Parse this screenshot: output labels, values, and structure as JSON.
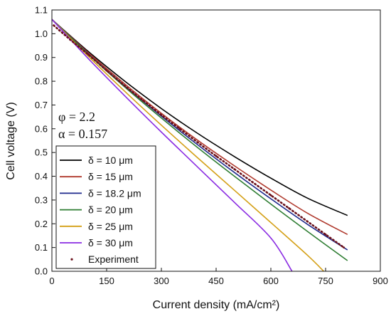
{
  "chart_data": {
    "type": "line",
    "xlabel": "Current density (mA/cm²)",
    "ylabel": "Cell voltage (V)",
    "xlim": [
      0,
      900
    ],
    "ylim": [
      0,
      1.1
    ],
    "x_ticks": [
      "0",
      "150",
      "300",
      "450",
      "600",
      "750",
      "900"
    ],
    "y_ticks": [
      "0.0",
      "0.1",
      "0.2",
      "0.3",
      "0.4",
      "0.5",
      "0.6",
      "0.7",
      "0.8",
      "0.9",
      "1.0",
      "1.1"
    ],
    "annotations": [
      "φ = 2.2",
      "α = 0.157"
    ],
    "legend_position": "left",
    "series": [
      {
        "name": "δ = 10 μm",
        "color": "#000000",
        "style": "line",
        "x": [
          0,
          100,
          200,
          300,
          400,
          500,
          600,
          700,
          810
        ],
        "y": [
          1.06,
          0.925,
          0.8,
          0.685,
          0.58,
          0.483,
          0.392,
          0.308,
          0.235
        ]
      },
      {
        "name": "δ = 15 μm",
        "color": "#b03a2e",
        "style": "line",
        "x": [
          0,
          100,
          200,
          300,
          400,
          500,
          600,
          700,
          810
        ],
        "y": [
          1.06,
          0.92,
          0.788,
          0.665,
          0.551,
          0.444,
          0.342,
          0.245,
          0.155
        ]
      },
      {
        "name": "δ = 18.2 μm",
        "color": "#1f2a8c",
        "style": "line",
        "x": [
          0,
          100,
          200,
          300,
          400,
          500,
          600,
          700,
          810
        ],
        "y": [
          1.06,
          0.915,
          0.78,
          0.653,
          0.532,
          0.416,
          0.305,
          0.198,
          0.09
        ]
      },
      {
        "name": "δ = 20 μm",
        "color": "#2e7d32",
        "style": "line",
        "x": [
          0,
          100,
          200,
          300,
          400,
          500,
          600,
          700,
          810
        ],
        "y": [
          1.06,
          0.913,
          0.775,
          0.645,
          0.52,
          0.4,
          0.283,
          0.168,
          0.045
        ]
      },
      {
        "name": "δ = 25 μm",
        "color": "#d4a017",
        "style": "line",
        "x": [
          0,
          100,
          200,
          300,
          400,
          500,
          600,
          700,
          745
        ],
        "y": [
          1.06,
          0.905,
          0.757,
          0.615,
          0.477,
          0.341,
          0.205,
          0.068,
          0.0
        ]
      },
      {
        "name": "δ = 30 μm",
        "color": "#8a2be2",
        "style": "line",
        "x": [
          0,
          100,
          200,
          300,
          400,
          500,
          600,
          658
        ],
        "y": [
          1.06,
          0.895,
          0.738,
          0.586,
          0.438,
          0.29,
          0.14,
          0.0
        ]
      },
      {
        "name": "Experiment",
        "color": "#6a0f1a",
        "style": "dots",
        "x": [
          5,
          20,
          50,
          100,
          150,
          200,
          250,
          300,
          350,
          400,
          450,
          500,
          550,
          600,
          650,
          700,
          750,
          800
        ],
        "y": [
          1.035,
          1.015,
          0.975,
          0.912,
          0.845,
          0.78,
          0.718,
          0.658,
          0.6,
          0.542,
          0.485,
          0.43,
          0.375,
          0.32,
          0.265,
          0.21,
          0.155,
          0.1
        ]
      }
    ]
  }
}
